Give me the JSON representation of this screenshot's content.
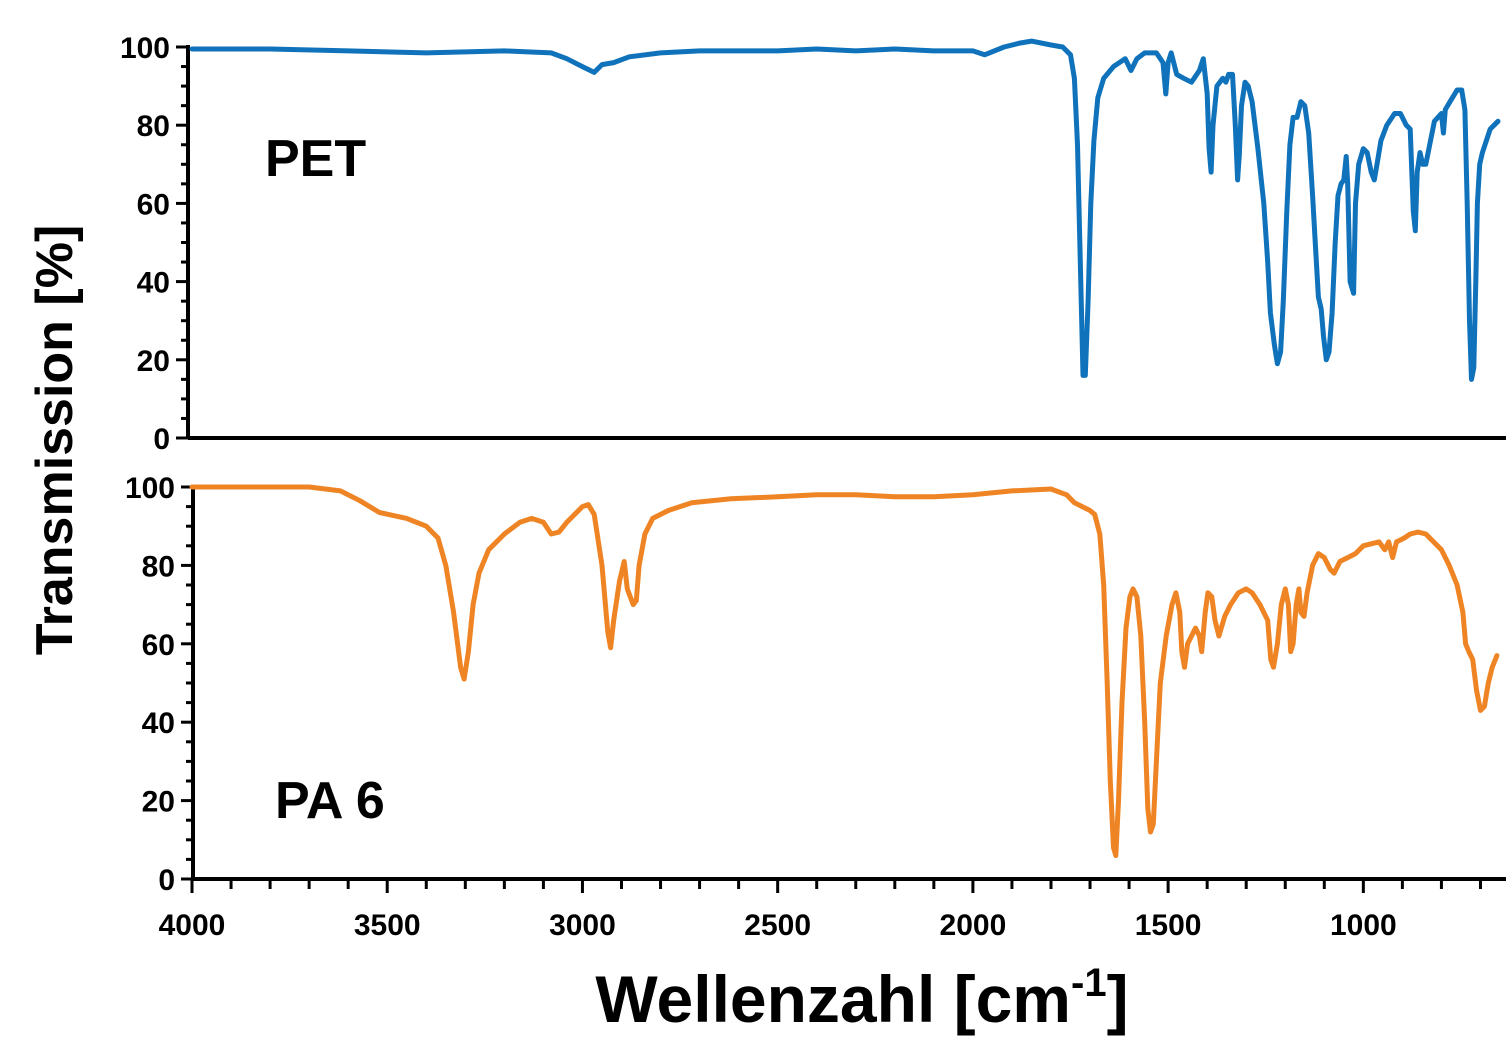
{
  "chart_data": {
    "type": "line",
    "ylabel": "Transmission [%]",
    "xlabel": "Wellenzahl [cm",
    "xlabel_unit_exp": "-1",
    "xlabel_close": "]",
    "x_range": [
      4000,
      650
    ],
    "x_ticks": [
      "4000",
      "3500",
      "3000",
      "2500",
      "2000",
      "1500",
      "1000"
    ],
    "y_range": [
      0,
      100
    ],
    "y_ticks": [
      "0",
      "20",
      "40",
      "60",
      "80",
      "100"
    ],
    "grid": false,
    "legend": "none",
    "panels": [
      {
        "label": "PET",
        "color": "#0f72bb",
        "points": [
          [
            4000,
            99.5
          ],
          [
            3800,
            99.5
          ],
          [
            3600,
            99
          ],
          [
            3400,
            98.5
          ],
          [
            3200,
            99
          ],
          [
            3080,
            98.5
          ],
          [
            3040,
            97
          ],
          [
            3000,
            95
          ],
          [
            2970,
            93.5
          ],
          [
            2950,
            95.5
          ],
          [
            2920,
            96
          ],
          [
            2880,
            97.5
          ],
          [
            2800,
            98.5
          ],
          [
            2700,
            99
          ],
          [
            2600,
            99
          ],
          [
            2500,
            99
          ],
          [
            2400,
            99.5
          ],
          [
            2300,
            99
          ],
          [
            2200,
            99.5
          ],
          [
            2100,
            99
          ],
          [
            2000,
            99
          ],
          [
            1970,
            98
          ],
          [
            1920,
            100
          ],
          [
            1880,
            101
          ],
          [
            1850,
            101.5
          ],
          [
            1800,
            100.5
          ],
          [
            1770,
            100
          ],
          [
            1750,
            98
          ],
          [
            1740,
            92
          ],
          [
            1732,
            75
          ],
          [
            1725,
            45
          ],
          [
            1718,
            16
          ],
          [
            1712,
            16
          ],
          [
            1705,
            35
          ],
          [
            1698,
            60
          ],
          [
            1690,
            76
          ],
          [
            1680,
            87
          ],
          [
            1665,
            92
          ],
          [
            1640,
            95
          ],
          [
            1610,
            97
          ],
          [
            1595,
            94
          ],
          [
            1580,
            97
          ],
          [
            1560,
            98.5
          ],
          [
            1530,
            98.5
          ],
          [
            1513,
            96
          ],
          [
            1506,
            88
          ],
          [
            1500,
            96
          ],
          [
            1492,
            98.5
          ],
          [
            1478,
            93
          ],
          [
            1460,
            92
          ],
          [
            1440,
            91
          ],
          [
            1420,
            94
          ],
          [
            1410,
            97
          ],
          [
            1400,
            88
          ],
          [
            1395,
            74
          ],
          [
            1390,
            68
          ],
          [
            1385,
            80
          ],
          [
            1375,
            90
          ],
          [
            1360,
            92
          ],
          [
            1352,
            91
          ],
          [
            1345,
            93
          ],
          [
            1335,
            93
          ],
          [
            1328,
            80
          ],
          [
            1322,
            66
          ],
          [
            1318,
            72
          ],
          [
            1312,
            85
          ],
          [
            1303,
            91
          ],
          [
            1295,
            90
          ],
          [
            1285,
            86
          ],
          [
            1270,
            74
          ],
          [
            1255,
            60
          ],
          [
            1245,
            45
          ],
          [
            1238,
            32
          ],
          [
            1228,
            24
          ],
          [
            1220,
            19
          ],
          [
            1212,
            22
          ],
          [
            1205,
            35
          ],
          [
            1196,
            58
          ],
          [
            1188,
            75
          ],
          [
            1180,
            82
          ],
          [
            1170,
            82
          ],
          [
            1160,
            86
          ],
          [
            1150,
            85
          ],
          [
            1140,
            78
          ],
          [
            1130,
            62
          ],
          [
            1122,
            48
          ],
          [
            1115,
            36
          ],
          [
            1108,
            33
          ],
          [
            1102,
            26
          ],
          [
            1095,
            20
          ],
          [
            1088,
            22
          ],
          [
            1080,
            32
          ],
          [
            1072,
            50
          ],
          [
            1065,
            62
          ],
          [
            1057,
            65
          ],
          [
            1050,
            66
          ],
          [
            1044,
            72
          ],
          [
            1040,
            65
          ],
          [
            1034,
            40
          ],
          [
            1025,
            37
          ],
          [
            1020,
            60
          ],
          [
            1012,
            70
          ],
          [
            1000,
            74
          ],
          [
            990,
            73
          ],
          [
            980,
            68
          ],
          [
            972,
            66
          ],
          [
            965,
            70
          ],
          [
            955,
            76
          ],
          [
            940,
            80
          ],
          [
            920,
            83
          ],
          [
            905,
            83
          ],
          [
            890,
            80
          ],
          [
            880,
            79
          ],
          [
            872,
            58
          ],
          [
            867,
            53
          ],
          [
            862,
            68
          ],
          [
            855,
            73
          ],
          [
            848,
            70
          ],
          [
            840,
            70
          ],
          [
            830,
            75
          ],
          [
            818,
            81
          ],
          [
            800,
            83
          ],
          [
            795,
            78
          ],
          [
            790,
            84
          ],
          [
            778,
            86
          ],
          [
            760,
            89
          ],
          [
            748,
            89
          ],
          [
            740,
            84
          ],
          [
            734,
            60
          ],
          [
            728,
            30
          ],
          [
            723,
            15
          ],
          [
            717,
            18
          ],
          [
            712,
            40
          ],
          [
            708,
            60
          ],
          [
            702,
            70
          ],
          [
            695,
            73
          ],
          [
            685,
            76
          ],
          [
            675,
            79
          ],
          [
            665,
            80
          ],
          [
            655,
            81
          ]
        ]
      },
      {
        "label": "PA 6",
        "color": "#ef8424",
        "points": [
          [
            4000,
            100
          ],
          [
            3700,
            100
          ],
          [
            3620,
            99
          ],
          [
            3570,
            96.5
          ],
          [
            3520,
            93.5
          ],
          [
            3450,
            92
          ],
          [
            3400,
            90
          ],
          [
            3370,
            87
          ],
          [
            3350,
            80
          ],
          [
            3330,
            68
          ],
          [
            3312,
            54
          ],
          [
            3303,
            51
          ],
          [
            3292,
            58
          ],
          [
            3280,
            70
          ],
          [
            3265,
            78
          ],
          [
            3240,
            84
          ],
          [
            3200,
            88
          ],
          [
            3160,
            91
          ],
          [
            3130,
            92
          ],
          [
            3100,
            91
          ],
          [
            3080,
            88
          ],
          [
            3060,
            88.5
          ],
          [
            3040,
            91
          ],
          [
            3000,
            95
          ],
          [
            2985,
            95.5
          ],
          [
            2970,
            93
          ],
          [
            2950,
            80
          ],
          [
            2935,
            63
          ],
          [
            2928,
            59
          ],
          [
            2920,
            66
          ],
          [
            2905,
            76
          ],
          [
            2893,
            81
          ],
          [
            2885,
            74
          ],
          [
            2870,
            70
          ],
          [
            2862,
            71
          ],
          [
            2855,
            80
          ],
          [
            2840,
            88
          ],
          [
            2820,
            92
          ],
          [
            2780,
            94
          ],
          [
            2720,
            96
          ],
          [
            2620,
            97
          ],
          [
            2500,
            97.5
          ],
          [
            2400,
            98
          ],
          [
            2300,
            98
          ],
          [
            2200,
            97.5
          ],
          [
            2100,
            97.5
          ],
          [
            2000,
            98
          ],
          [
            1900,
            99
          ],
          [
            1800,
            99.5
          ],
          [
            1760,
            98
          ],
          [
            1740,
            96
          ],
          [
            1700,
            94
          ],
          [
            1688,
            93
          ],
          [
            1675,
            88
          ],
          [
            1665,
            75
          ],
          [
            1656,
            50
          ],
          [
            1648,
            25
          ],
          [
            1640,
            8
          ],
          [
            1634,
            6
          ],
          [
            1627,
            20
          ],
          [
            1618,
            45
          ],
          [
            1608,
            64
          ],
          [
            1598,
            72
          ],
          [
            1590,
            74
          ],
          [
            1580,
            72
          ],
          [
            1570,
            62
          ],
          [
            1560,
            40
          ],
          [
            1552,
            18
          ],
          [
            1545,
            12
          ],
          [
            1538,
            14
          ],
          [
            1530,
            30
          ],
          [
            1520,
            50
          ],
          [
            1505,
            62
          ],
          [
            1490,
            70
          ],
          [
            1480,
            73
          ],
          [
            1470,
            68
          ],
          [
            1465,
            58
          ],
          [
            1458,
            54
          ],
          [
            1450,
            60
          ],
          [
            1440,
            62
          ],
          [
            1430,
            64
          ],
          [
            1420,
            62
          ],
          [
            1414,
            58
          ],
          [
            1405,
            68
          ],
          [
            1398,
            73
          ],
          [
            1388,
            72
          ],
          [
            1380,
            66
          ],
          [
            1370,
            62
          ],
          [
            1355,
            67
          ],
          [
            1340,
            70
          ],
          [
            1320,
            73
          ],
          [
            1300,
            74
          ],
          [
            1285,
            73
          ],
          [
            1265,
            70
          ],
          [
            1245,
            66
          ],
          [
            1237,
            56
          ],
          [
            1230,
            54
          ],
          [
            1220,
            60
          ],
          [
            1210,
            70
          ],
          [
            1200,
            74
          ],
          [
            1192,
            70
          ],
          [
            1186,
            58
          ],
          [
            1180,
            60
          ],
          [
            1172,
            70
          ],
          [
            1165,
            74
          ],
          [
            1160,
            68
          ],
          [
            1152,
            67
          ],
          [
            1144,
            73
          ],
          [
            1130,
            80
          ],
          [
            1115,
            83
          ],
          [
            1100,
            82
          ],
          [
            1085,
            79
          ],
          [
            1075,
            78
          ],
          [
            1060,
            81
          ],
          [
            1040,
            82
          ],
          [
            1020,
            83
          ],
          [
            1000,
            85
          ],
          [
            980,
            85.5
          ],
          [
            960,
            86
          ],
          [
            945,
            84
          ],
          [
            935,
            86
          ],
          [
            925,
            82
          ],
          [
            915,
            86
          ],
          [
            895,
            87
          ],
          [
            880,
            88
          ],
          [
            860,
            88.5
          ],
          [
            840,
            88
          ],
          [
            820,
            86
          ],
          [
            800,
            84
          ],
          [
            780,
            80
          ],
          [
            760,
            75
          ],
          [
            745,
            68
          ],
          [
            738,
            60
          ],
          [
            730,
            58
          ],
          [
            720,
            56
          ],
          [
            710,
            48
          ],
          [
            700,
            43
          ],
          [
            690,
            44
          ],
          [
            680,
            50
          ],
          [
            670,
            54
          ],
          [
            658,
            57
          ]
        ]
      }
    ]
  }
}
